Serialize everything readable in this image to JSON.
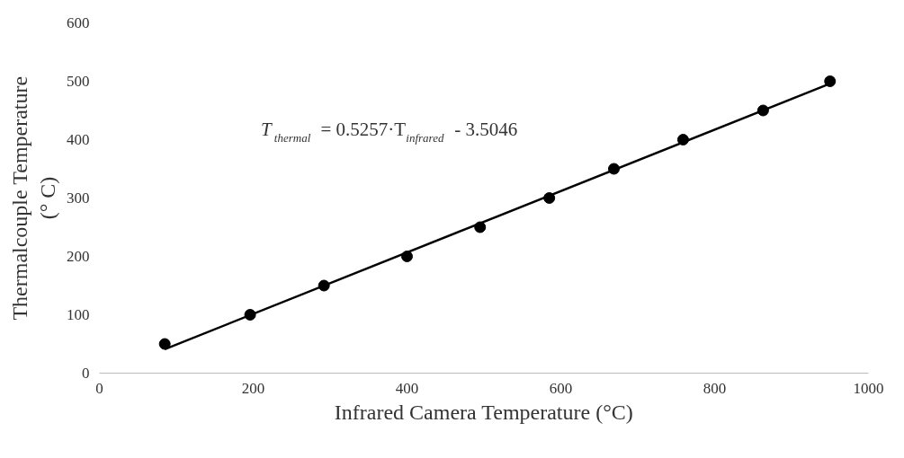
{
  "chart_data": {
    "type": "scatter",
    "xlabel": "Infrared Camera Temperature (°C)",
    "ylabel": "Thermalcouple Temperature (° C)",
    "xlim": [
      0,
      1000
    ],
    "xticks": [
      0,
      200,
      400,
      600,
      800,
      1000
    ],
    "ylim": [
      0,
      600
    ],
    "yticks": [
      0,
      100,
      200,
      300,
      400,
      500,
      600
    ],
    "grid": false,
    "annotations": [
      "T$_{thermal}$ = 0.5257·T$_{infrared}$ - 3.5046"
    ],
    "series": [
      {
        "color": "#000000",
        "marker": "circle",
        "x": [
          85,
          196,
          292,
          400,
          495,
          585,
          669,
          759,
          863,
          950
        ],
        "values": [
          50,
          100,
          150,
          200,
          250,
          300,
          350,
          400,
          450,
          500
        ]
      },
      {
        "type": "line",
        "color": "#000000",
        "line_style": "solid",
        "x": [
          85,
          950
        ],
        "values": [
          41,
          496
        ]
      }
    ]
  }
}
